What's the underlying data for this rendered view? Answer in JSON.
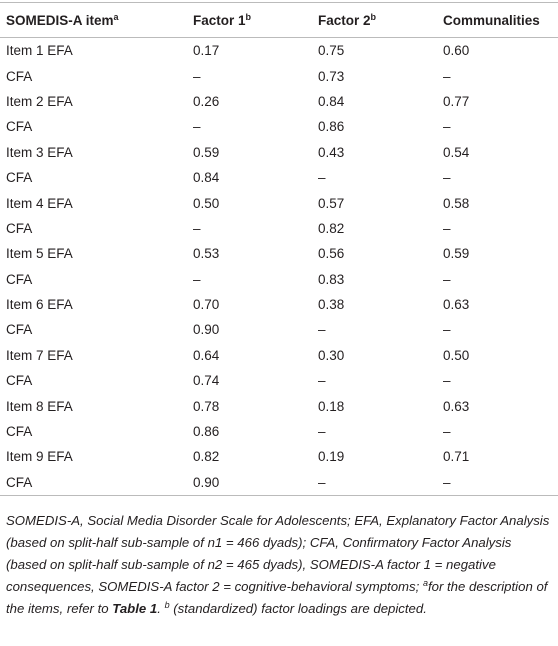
{
  "table": {
    "header": [
      {
        "text": "SOMEDIS-A item",
        "sup": "a"
      },
      {
        "text": "Factor 1",
        "sup": "b"
      },
      {
        "text": "Factor 2",
        "sup": "b"
      },
      {
        "text": "Communalities"
      }
    ],
    "rows": [
      [
        "Item 1 EFA",
        "0.17",
        "0.75",
        "0.60"
      ],
      [
        "CFA",
        "–",
        "0.73",
        "–"
      ],
      [
        "Item 2 EFA",
        "0.26",
        "0.84",
        "0.77"
      ],
      [
        "CFA",
        "–",
        "0.86",
        "–"
      ],
      [
        "Item 3 EFA",
        "0.59",
        "0.43",
        "0.54"
      ],
      [
        "CFA",
        "0.84",
        "–",
        "–"
      ],
      [
        "Item 4 EFA",
        "0.50",
        "0.57",
        "0.58"
      ],
      [
        "CFA",
        "–",
        "0.82",
        "–"
      ],
      [
        "Item 5 EFA",
        "0.53",
        "0.56",
        "0.59"
      ],
      [
        "CFA",
        "–",
        "0.83",
        "–"
      ],
      [
        "Item 6 EFA",
        "0.70",
        "0.38",
        "0.63"
      ],
      [
        "CFA",
        "0.90",
        "–",
        "–"
      ],
      [
        "Item 7 EFA",
        "0.64",
        "0.30",
        "0.50"
      ],
      [
        "CFA",
        "0.74",
        "–",
        "–"
      ],
      [
        "Item 8 EFA",
        "0.78",
        "0.18",
        "0.63"
      ],
      [
        "CFA",
        "0.86",
        "–",
        "–"
      ],
      [
        "Item 9 EFA",
        "0.82",
        "0.19",
        "0.71"
      ],
      [
        "CFA",
        "0.90",
        "–",
        "–"
      ]
    ]
  },
  "footnote": {
    "parts": [
      "SOMEDIS-A, Social Media Disorder Scale for Adolescents; EFA, Explanatory Factor Analysis (based on split-half sub-sample of n1 = 466 dyads); CFA, Confirmatory Factor Analysis (based on split-half sub-sample of n2 = 465 dyads), SOMEDIS-A factor 1 = negative consequences, SOMEDIS-A factor 2 = cognitive-behavioral symptoms; ",
      "a",
      "for the description of the items, refer to ",
      "Table 1",
      ". ",
      "b",
      " (standardized) factor loadings are depicted."
    ]
  }
}
